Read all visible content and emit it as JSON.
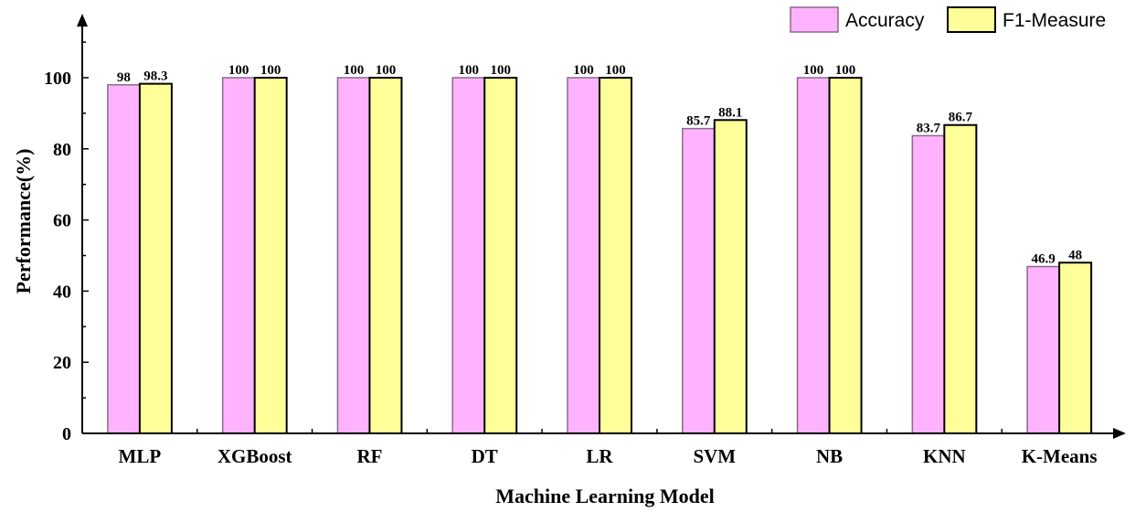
{
  "chart_data": {
    "type": "bar",
    "title": "",
    "xlabel": "Machine Learning Model",
    "ylabel": "Performance(%)",
    "ylim": [
      0,
      115
    ],
    "yticks": [
      0,
      20,
      40,
      60,
      80,
      100
    ],
    "grid": false,
    "legend_position": "top-right",
    "categories": [
      "MLP",
      "XGBoost",
      "RF",
      "DT",
      "LR",
      "SVM",
      "NB",
      "KNN",
      "K-Means"
    ],
    "series": [
      {
        "name": "Accuracy",
        "color": "#ffb3ff",
        "values": [
          98,
          100,
          100,
          100,
          100,
          85.7,
          100,
          83.7,
          46.9
        ]
      },
      {
        "name": "F1-Measure",
        "color": "#ffff99",
        "values": [
          98.3,
          100,
          100,
          100,
          100,
          88.1,
          100,
          86.7,
          48
        ]
      }
    ],
    "data_labels": [
      [
        "98",
        "100",
        "100",
        "100",
        "100",
        "85.7",
        "100",
        "83.7",
        "46.9"
      ],
      [
        "98.3",
        "100",
        "100",
        "100",
        "100",
        "88.1",
        "100",
        "86.7",
        "48"
      ]
    ]
  }
}
